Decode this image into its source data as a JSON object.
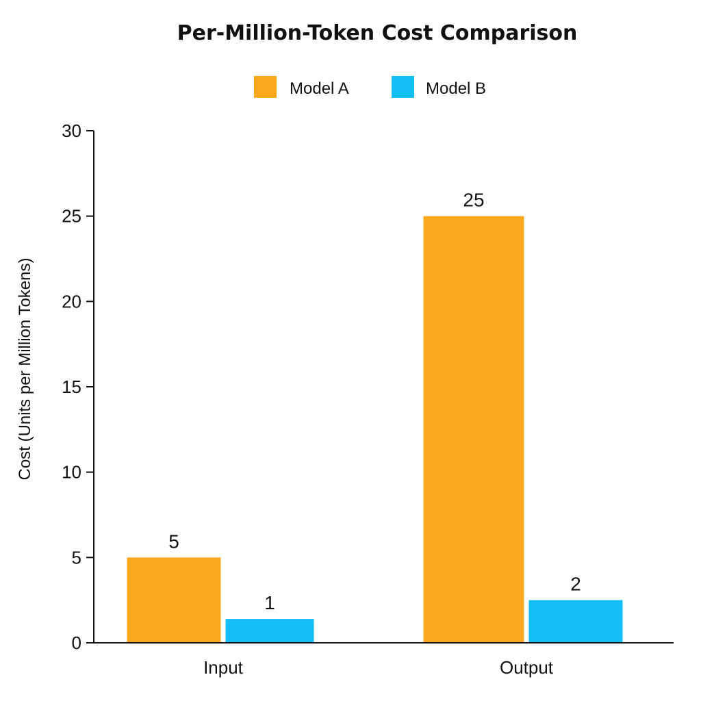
{
  "chart_data": {
    "type": "bar",
    "title": "Per-Million-Token Cost Comparison",
    "xlabel": "",
    "ylabel": "Cost (Units per Million Tokens)",
    "categories": [
      "Input",
      "Output"
    ],
    "series": [
      {
        "name": "Model A",
        "color": "#FCA81D",
        "values": [
          5,
          25
        ],
        "labels": [
          "5",
          "25"
        ]
      },
      {
        "name": "Model B",
        "color": "#14BEF6",
        "values": [
          1.4,
          2.5
        ],
        "labels": [
          "1",
          "2"
        ]
      }
    ],
    "ylim": [
      0,
      30
    ],
    "yticks": [
      0,
      5,
      10,
      15,
      20,
      25,
      30
    ],
    "grid": false,
    "legend": "top-center"
  }
}
